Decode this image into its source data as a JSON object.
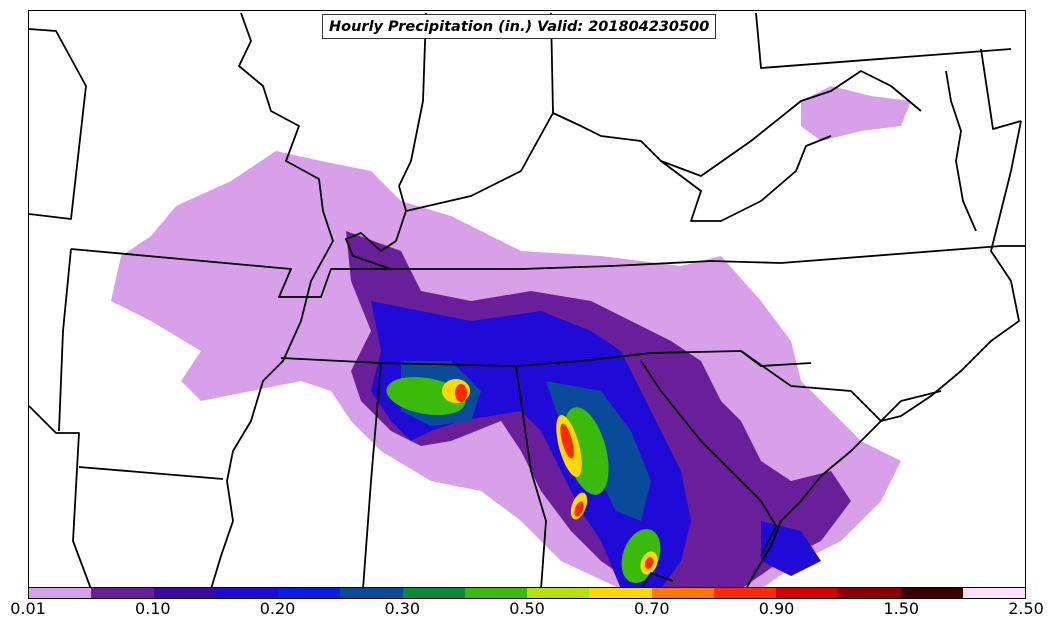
{
  "title": "Hourly Precipitation (in.) Valid: 201804230500",
  "colorbar": {
    "colors": [
      "#d8a0e8",
      "#6a1f9a",
      "#3c0aa0",
      "#1f0ad8",
      "#0a1ee8",
      "#0a4a9a",
      "#0a8a3a",
      "#3aba0a",
      "#b8e00a",
      "#ffd800",
      "#ff7800",
      "#ff2a00",
      "#d40000",
      "#8a0000",
      "#3a0000",
      "#ffe0fa"
    ],
    "tick_labels": [
      "0.01",
      "0.10",
      "0.20",
      "0.30",
      "0.50",
      "0.70",
      "0.90",
      "1.50",
      "2.50"
    ]
  },
  "legend": {
    "light": "#d8a0e8",
    "purple": "#6a1f9a",
    "blue": "#1f0ad8",
    "teal": "#0a4a9a",
    "green": "#3aba0a",
    "yellow": "#ffd800",
    "red": "#ff2a00"
  }
}
